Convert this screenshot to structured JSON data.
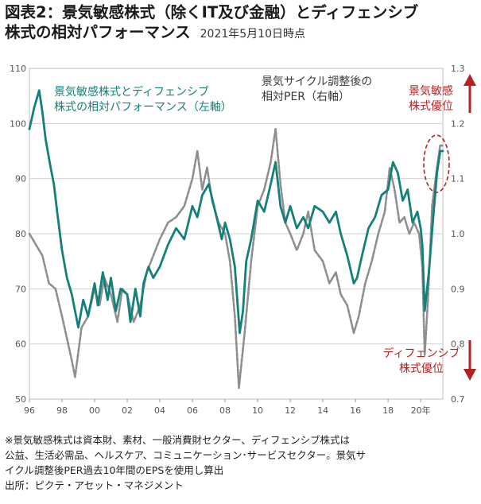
{
  "title": {
    "line1": "図表2：景気敏感株式（除くIT及び金融）とディフェンシブ",
    "line2": "株式の相対パフォーマンス",
    "date": "2021年5月10日時点"
  },
  "chart_data": {
    "type": "line",
    "x_tick_labels": [
      "96",
      "98",
      "00",
      "02",
      "04",
      "06",
      "08",
      "10",
      "12",
      "14",
      "16",
      "18",
      "20年"
    ],
    "x_range": [
      1996.0,
      2021.36
    ],
    "left_axis": {
      "range": [
        50,
        110
      ],
      "ticks": [
        50,
        60,
        70,
        80,
        90,
        100,
        110
      ]
    },
    "right_axis": {
      "range": [
        0.7,
        1.3
      ],
      "ticks": [
        "0.7",
        "0.8",
        "0.9",
        "1.0",
        "1.1",
        "1.2",
        "1.3"
      ]
    },
    "grid": true,
    "series": [
      {
        "name": "景気敏感株式とディフェンシブ株式の相対パフォーマンス（左軸）",
        "axis": "left",
        "color": "#14807a",
        "x": [
          1996.0,
          1996.3,
          1996.6,
          1996.8,
          1997.0,
          1997.3,
          1997.5,
          1997.7,
          1998.0,
          1998.3,
          1998.6,
          1999.0,
          1999.3,
          1999.6,
          2000.0,
          2000.2,
          2000.5,
          2000.8,
          2001.0,
          2001.3,
          2001.6,
          2002.0,
          2002.2,
          2002.5,
          2002.8,
          2003.0,
          2003.3,
          2003.6,
          2004.0,
          2004.5,
          2005.0,
          2005.5,
          2006.0,
          2006.3,
          2006.6,
          2007.0,
          2007.4,
          2007.8,
          2008.0,
          2008.3,
          2008.6,
          2008.9,
          2009.1,
          2009.3,
          2009.6,
          2010.0,
          2010.4,
          2010.8,
          2011.1,
          2011.4,
          2011.7,
          2012.0,
          2012.4,
          2012.8,
          2013.1,
          2013.5,
          2014.0,
          2014.4,
          2014.8,
          2015.1,
          2015.5,
          2015.9,
          2016.1,
          2016.4,
          2016.8,
          2017.2,
          2017.6,
          2018.0,
          2018.3,
          2018.6,
          2018.9,
          2019.2,
          2019.5,
          2019.8,
          2020.0,
          2020.1,
          2020.25,
          2020.5,
          2020.8,
          2021.0,
          2021.2,
          2021.36
        ],
        "y": [
          99,
          103,
          106,
          102,
          97,
          92,
          89,
          84,
          77,
          72,
          69,
          63,
          68,
          65,
          71,
          67,
          73,
          68,
          72,
          66,
          70,
          69,
          64,
          70,
          65,
          71,
          74,
          72,
          74,
          78,
          81,
          79,
          85,
          83,
          87,
          89,
          84,
          79,
          82,
          79,
          74,
          62,
          66,
          75,
          79,
          86,
          84,
          89,
          93,
          85,
          82,
          85,
          81,
          83,
          81,
          85,
          84,
          82,
          84,
          80,
          76,
          71,
          72,
          76,
          81,
          83,
          87,
          88,
          93,
          91,
          86,
          88,
          82,
          84,
          81,
          78,
          66,
          73,
          84,
          91,
          95,
          95
        ]
      },
      {
        "name": "景気サイクル調整後の相対PER（右軸）",
        "axis": "right",
        "color": "#8e8e8e",
        "dashed": true,
        "x": [
          1996.0,
          1996.4,
          1996.8,
          1997.2,
          1997.6,
          1998.0,
          1998.3,
          1998.6,
          1998.8,
          1999.2,
          1999.6,
          2000.0,
          2000.3,
          2000.6,
          2001.0,
          2001.4,
          2001.7,
          2002.0,
          2002.4,
          2002.8,
          2003.2,
          2003.6,
          2004.0,
          2004.5,
          2005.0,
          2005.5,
          2006.0,
          2006.3,
          2006.6,
          2006.9,
          2007.2,
          2007.6,
          2008.0,
          2008.3,
          2008.6,
          2008.85,
          2009.2,
          2009.6,
          2010.0,
          2010.4,
          2010.8,
          2011.1,
          2011.4,
          2011.7,
          2012.0,
          2012.4,
          2012.8,
          2013.1,
          2013.5,
          2014.0,
          2014.4,
          2014.8,
          2015.1,
          2015.5,
          2015.9,
          2016.2,
          2016.6,
          2017.0,
          2017.4,
          2017.8,
          2018.1,
          2018.4,
          2018.7,
          2019.0,
          2019.3,
          2019.6,
          2019.9,
          2020.1,
          2020.25,
          2020.45,
          2020.7,
          2021.0,
          2021.2,
          2021.36
        ],
        "y": [
          1.0,
          0.98,
          0.96,
          0.91,
          0.9,
          0.85,
          0.81,
          0.77,
          0.74,
          0.83,
          0.85,
          0.9,
          0.87,
          0.92,
          0.89,
          0.84,
          0.9,
          0.89,
          0.84,
          0.87,
          0.93,
          0.96,
          0.99,
          1.02,
          1.03,
          1.05,
          1.1,
          1.15,
          1.08,
          1.12,
          1.06,
          1.02,
          1.0,
          0.95,
          0.85,
          0.72,
          0.82,
          0.95,
          1.05,
          1.08,
          1.13,
          1.19,
          1.09,
          1.02,
          1.0,
          0.97,
          1.0,
          1.04,
          0.97,
          0.95,
          0.91,
          0.93,
          0.89,
          0.87,
          0.82,
          0.85,
          0.91,
          0.95,
          1.0,
          1.04,
          1.12,
          1.08,
          1.02,
          1.03,
          1.0,
          1.02,
          1.0,
          0.94,
          0.78,
          0.88,
          1.05,
          1.12,
          1.16,
          1.16
        ]
      }
    ],
    "annotations": {
      "series1_label": [
        "景気敏感株式とディフェンシブ",
        "株式の相対パフォーマンス（左軸）"
      ],
      "series2_label": [
        "景気サイクル調整後の",
        "相対PER（右軸）"
      ],
      "top_arrow_label": [
        "景気敏感",
        "株式優位"
      ],
      "bottom_arrow_label": [
        "ディフェンシブ",
        "株式優位"
      ],
      "accent_color": "#b22222"
    }
  },
  "footnote": [
    "※景気敏感株式は資本財、素材、一般消費財セクター、ディフェンシブ株式は",
    "公益、生活必需品、ヘルスケア、コミュニケーション･サービスセクター。景気サ",
    "イクル調整後PER過去10年間のEPSを使用し算出",
    "出所：ピクテ・アセット・マネジメント"
  ]
}
